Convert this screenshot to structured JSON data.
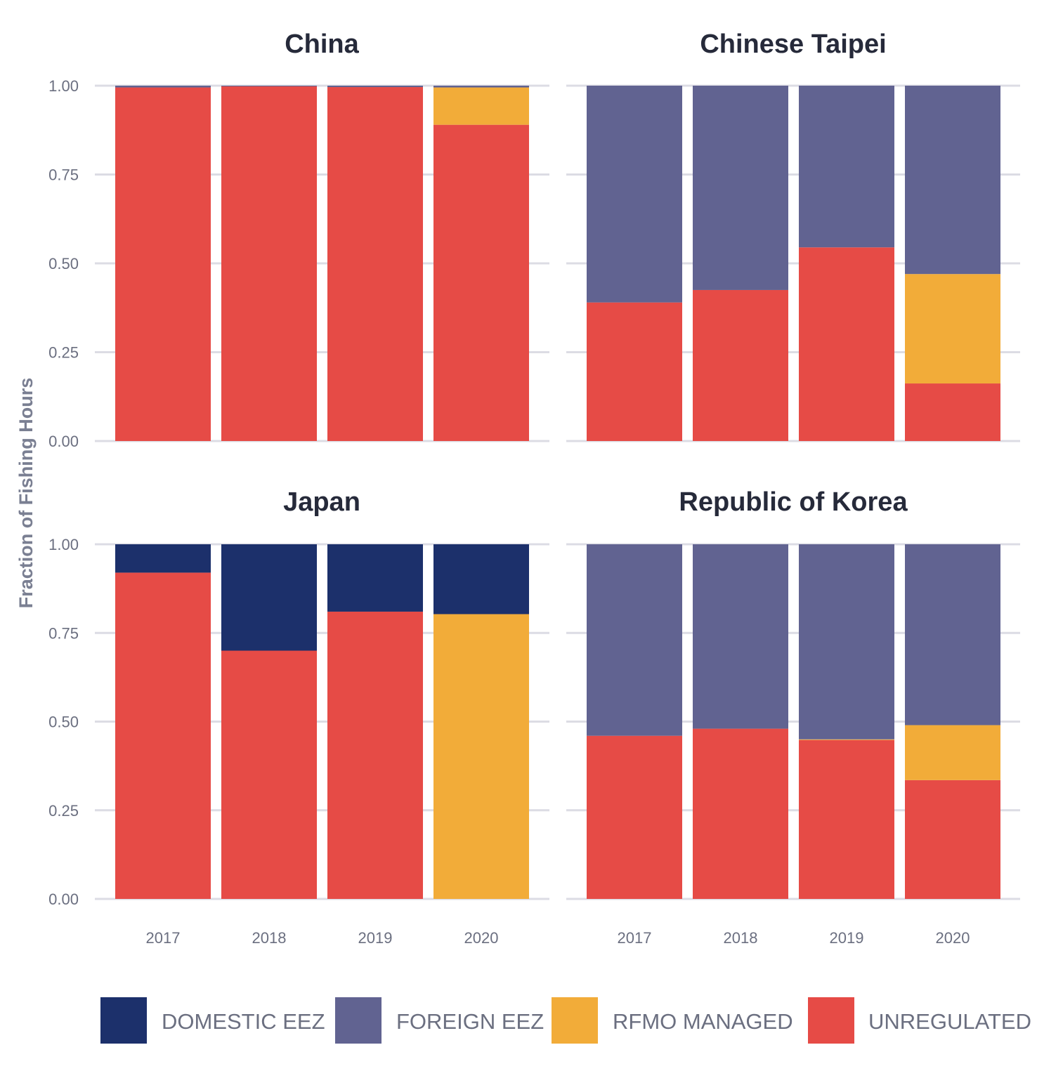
{
  "chart_data": {
    "type": "bar",
    "stacked": true,
    "ylabel": "Fraction of Fishing Hours",
    "y_ticks": [
      "0.00",
      "0.25",
      "0.50",
      "0.75",
      "1.00"
    ],
    "ylim": [
      0,
      1
    ],
    "categories": [
      "2017",
      "2018",
      "2019",
      "2020"
    ],
    "series_names": [
      "DOMESTIC EEZ",
      "FOREIGN EEZ",
      "RFMO MANAGED",
      "UNREGULATED"
    ],
    "colors": {
      "DOMESTIC EEZ": "#1c306b",
      "FOREIGN EEZ": "#616391",
      "RFMO MANAGED": "#f2ac39",
      "UNREGULATED": "#e64b46"
    },
    "legend_position": "bottom",
    "grid": true,
    "panels": [
      {
        "title": "China",
        "series": [
          {
            "name": "UNREGULATED",
            "values": [
              0.995,
              0.998,
              0.996,
              0.89
            ]
          },
          {
            "name": "RFMO MANAGED",
            "values": [
              0.0,
              0.0,
              0.0,
              0.105
            ]
          },
          {
            "name": "FOREIGN EEZ",
            "values": [
              0.005,
              0.002,
              0.004,
              0.005
            ]
          },
          {
            "name": "DOMESTIC EEZ",
            "values": [
              0,
              0,
              0,
              0
            ]
          }
        ]
      },
      {
        "title": "Chinese Taipei",
        "series": [
          {
            "name": "UNREGULATED",
            "values": [
              0.39,
              0.425,
              0.545,
              0.162
            ]
          },
          {
            "name": "RFMO MANAGED",
            "values": [
              0.0,
              0.0,
              0.0,
              0.308
            ]
          },
          {
            "name": "FOREIGN EEZ",
            "values": [
              0.61,
              0.575,
              0.455,
              0.53
            ]
          },
          {
            "name": "DOMESTIC EEZ",
            "values": [
              0,
              0,
              0,
              0
            ]
          }
        ]
      },
      {
        "title": "Japan",
        "series": [
          {
            "name": "UNREGULATED",
            "values": [
              0.92,
              0.7,
              0.81,
              0.0
            ]
          },
          {
            "name": "RFMO MANAGED",
            "values": [
              0.0,
              0.0,
              0.0,
              0.803
            ]
          },
          {
            "name": "FOREIGN EEZ",
            "values": [
              0,
              0,
              0,
              0
            ]
          },
          {
            "name": "DOMESTIC EEZ",
            "values": [
              0.08,
              0.3,
              0.19,
              0.197
            ]
          }
        ]
      },
      {
        "title": "Republic of Korea",
        "series": [
          {
            "name": "UNREGULATED",
            "values": [
              0.46,
              0.48,
              0.448,
              0.335
            ]
          },
          {
            "name": "RFMO MANAGED",
            "values": [
              0.0,
              0.0,
              0.002,
              0.155
            ]
          },
          {
            "name": "FOREIGN EEZ",
            "values": [
              0.54,
              0.52,
              0.55,
              0.51
            ]
          },
          {
            "name": "DOMESTIC EEZ",
            "values": [
              0,
              0,
              0,
              0
            ]
          }
        ]
      }
    ]
  }
}
